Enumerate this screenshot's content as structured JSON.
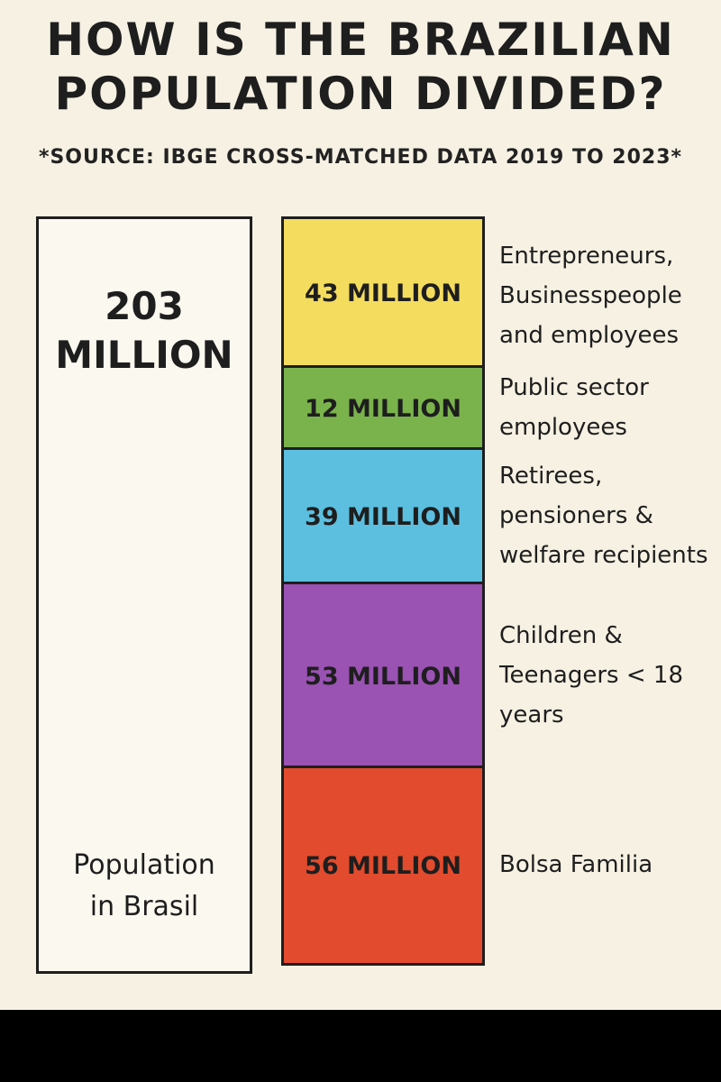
{
  "title_lines": [
    "HOW IS THE BRAZILIAN",
    "POPULATION DIVIDED?"
  ],
  "source": "*SOURCE: IBGE CROSS-MATCHED DATA 2019 TO 2023*",
  "colors": {
    "background": "#f6f1e3",
    "yellow": "#f4dc5f",
    "green": "#7ab34c",
    "blue": "#5cbfdf",
    "purple": "#9a52b3",
    "red": "#e24b2e"
  },
  "chart_data": {
    "type": "bar",
    "total": {
      "value_lines": [
        "203",
        "MILLION"
      ],
      "label_lines": [
        "Population",
        "in Brasil"
      ],
      "value": 203
    },
    "segments": [
      {
        "value": 43,
        "value_label": "43 MILLION",
        "label_lines": [
          "Entrepreneurs,",
          "Businesspeople",
          "and employees"
        ],
        "color": "#f4dc5f"
      },
      {
        "value": 12,
        "value_label": "12 MILLION",
        "label_lines": [
          "Public sector",
          "employees"
        ],
        "color": "#7ab34c"
      },
      {
        "value": 39,
        "value_label": "39 MILLION",
        "label_lines": [
          "Retirees,",
          "pensioners &",
          "welfare recipients"
        ],
        "color": "#5cbfdf"
      },
      {
        "value": 53,
        "value_label": "53 MILLION",
        "label_lines": [
          "Children &",
          "Teenagers < 18",
          "years"
        ],
        "color": "#9a52b3"
      },
      {
        "value": 56,
        "value_label": "56 MILLION",
        "label_lines": [
          "Bolsa Familia"
        ],
        "color": "#e24b2e"
      }
    ]
  }
}
